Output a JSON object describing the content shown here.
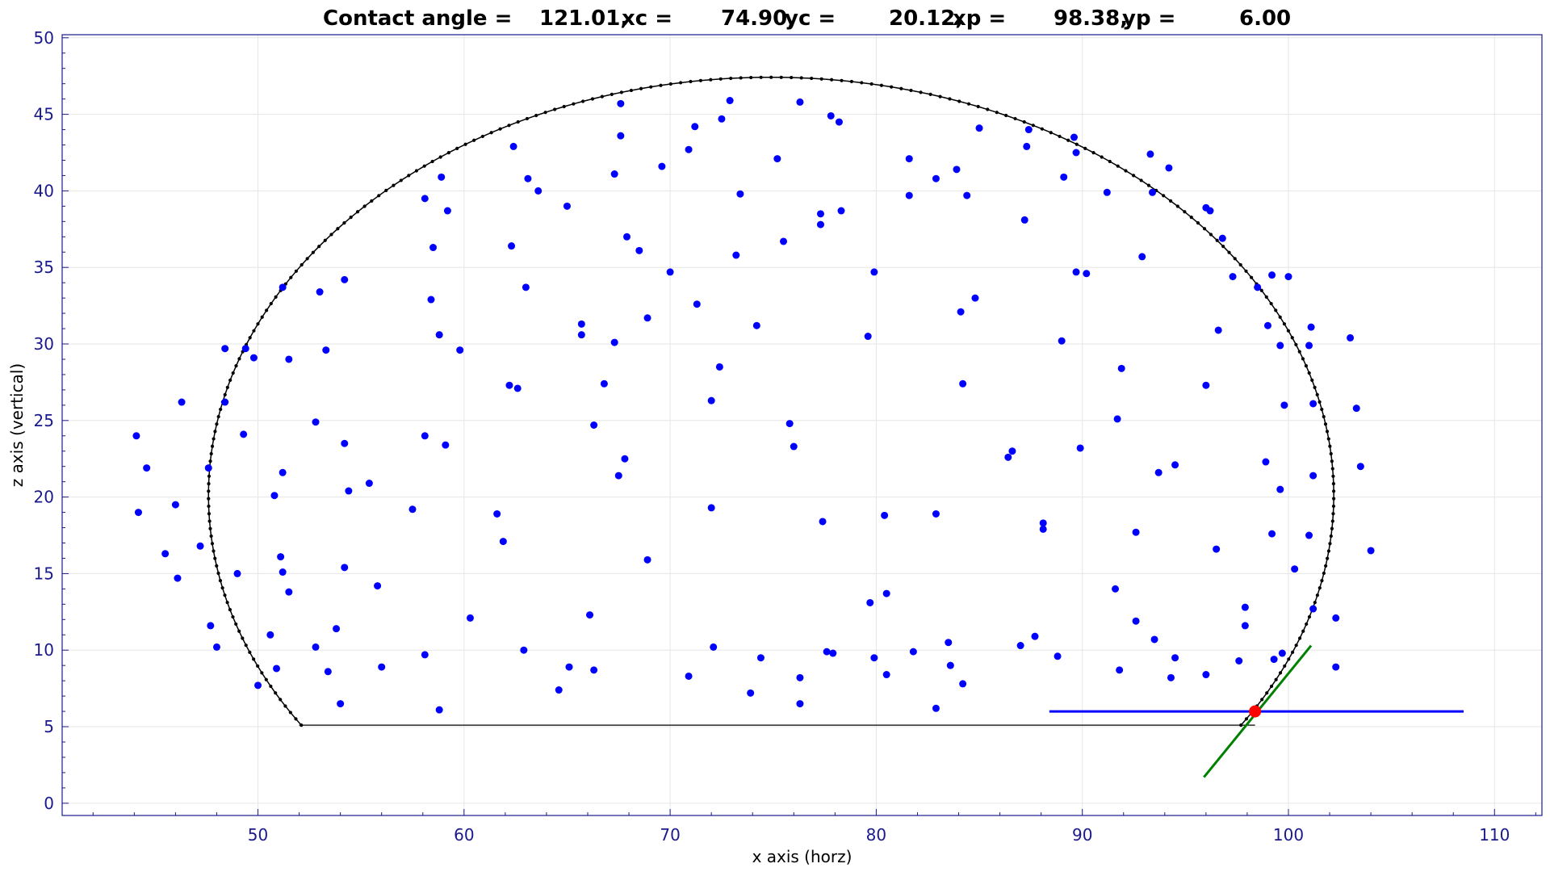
{
  "chart_data": {
    "type": "scatter",
    "title": {
      "prefix": "Contact angle =",
      "angle": "121.01,",
      "xc_label": "xc =",
      "xc": "74.90,",
      "yc_label": "yc =",
      "yc": "20.12,",
      "xp_label": "xp =",
      "xp": "98.38,",
      "yp_label": "yp =",
      "yp": "6.00"
    },
    "xlabel": "x axis (horz)",
    "ylabel": "z axis (vertical)",
    "xlim": [
      40.5,
      112.3
    ],
    "ylim": [
      -0.8,
      50.2
    ],
    "xticks": [
      50,
      60,
      70,
      80,
      90,
      100,
      110
    ],
    "yticks": [
      0,
      5,
      10,
      15,
      20,
      25,
      30,
      35,
      40,
      45,
      50
    ],
    "grid": true,
    "fitted_circle": {
      "xc": 74.9,
      "yc": 20.12,
      "r": 27.3,
      "base_z": 5.1
    },
    "baseline": {
      "x": [
        52.0,
        98.38
      ],
      "y": [
        5.1,
        5.1
      ]
    },
    "contact_point": {
      "x": 98.38,
      "y": 6.0,
      "color": "#ff0000"
    },
    "horizontal_line": {
      "x": [
        88.4,
        108.5
      ],
      "y": [
        6.0,
        6.0
      ],
      "color": "#0000ff"
    },
    "tangent_line": {
      "x": [
        95.9,
        101.1
      ],
      "y": [
        1.7,
        10.3
      ],
      "color": "#008000"
    },
    "points_color": "#0000ff",
    "circle_color": "#000000",
    "points": [
      [
        44.1,
        24.0
      ],
      [
        44.2,
        19.0
      ],
      [
        44.6,
        21.9
      ],
      [
        45.5,
        16.3
      ],
      [
        46.0,
        19.5
      ],
      [
        46.1,
        14.7
      ],
      [
        46.3,
        26.2
      ],
      [
        47.2,
        16.8
      ],
      [
        47.6,
        21.9
      ],
      [
        47.7,
        11.6
      ],
      [
        48.0,
        10.2
      ],
      [
        48.4,
        26.2
      ],
      [
        48.4,
        29.7
      ],
      [
        49.0,
        15.0
      ],
      [
        49.3,
        24.1
      ],
      [
        49.4,
        29.7
      ],
      [
        49.8,
        29.1
      ],
      [
        50.0,
        7.7
      ],
      [
        50.6,
        11.0
      ],
      [
        50.8,
        20.1
      ],
      [
        50.9,
        8.8
      ],
      [
        51.1,
        16.1
      ],
      [
        51.2,
        15.1
      ],
      [
        51.2,
        21.6
      ],
      [
        51.2,
        33.7
      ],
      [
        51.5,
        13.8
      ],
      [
        51.5,
        29.0
      ],
      [
        52.8,
        24.9
      ],
      [
        52.8,
        10.2
      ],
      [
        53.0,
        33.4
      ],
      [
        53.3,
        29.6
      ],
      [
        53.4,
        8.6
      ],
      [
        53.8,
        11.4
      ],
      [
        54.0,
        6.5
      ],
      [
        54.2,
        23.5
      ],
      [
        54.2,
        15.4
      ],
      [
        54.2,
        34.2
      ],
      [
        54.4,
        20.4
      ],
      [
        55.4,
        20.9
      ],
      [
        55.8,
        14.2
      ],
      [
        56.0,
        8.9
      ],
      [
        57.5,
        19.2
      ],
      [
        58.1,
        39.5
      ],
      [
        58.1,
        24.0
      ],
      [
        58.1,
        9.7
      ],
      [
        58.4,
        32.9
      ],
      [
        58.5,
        36.3
      ],
      [
        58.8,
        30.6
      ],
      [
        58.8,
        6.1
      ],
      [
        58.9,
        40.9
      ],
      [
        59.1,
        23.4
      ],
      [
        59.2,
        38.7
      ],
      [
        59.8,
        29.6
      ],
      [
        60.3,
        12.1
      ],
      [
        61.6,
        18.9
      ],
      [
        61.9,
        17.1
      ],
      [
        62.2,
        27.3
      ],
      [
        62.3,
        36.4
      ],
      [
        62.4,
        42.9
      ],
      [
        62.6,
        27.1
      ],
      [
        62.9,
        10.0
      ],
      [
        63.0,
        33.7
      ],
      [
        63.1,
        40.8
      ],
      [
        63.6,
        40.0
      ],
      [
        64.6,
        7.4
      ],
      [
        65.0,
        39.0
      ],
      [
        65.1,
        8.9
      ],
      [
        65.7,
        31.3
      ],
      [
        65.7,
        30.6
      ],
      [
        66.1,
        12.3
      ],
      [
        66.3,
        24.7
      ],
      [
        66.3,
        8.7
      ],
      [
        66.8,
        27.4
      ],
      [
        67.3,
        41.1
      ],
      [
        67.3,
        30.1
      ],
      [
        67.5,
        21.4
      ],
      [
        67.6,
        45.7
      ],
      [
        67.6,
        43.6
      ],
      [
        67.8,
        22.5
      ],
      [
        67.9,
        37.0
      ],
      [
        68.5,
        36.1
      ],
      [
        68.9,
        31.7
      ],
      [
        68.9,
        15.9
      ],
      [
        69.6,
        41.6
      ],
      [
        70.0,
        34.7
      ],
      [
        70.9,
        42.7
      ],
      [
        70.9,
        8.3
      ],
      [
        71.2,
        44.2
      ],
      [
        71.3,
        32.6
      ],
      [
        72.0,
        26.3
      ],
      [
        72.0,
        19.3
      ],
      [
        72.1,
        10.2
      ],
      [
        72.4,
        28.5
      ],
      [
        72.5,
        44.7
      ],
      [
        72.9,
        45.9
      ],
      [
        73.2,
        35.8
      ],
      [
        73.4,
        39.8
      ],
      [
        73.9,
        7.2
      ],
      [
        74.2,
        31.2
      ],
      [
        74.4,
        9.5
      ],
      [
        75.2,
        42.1
      ],
      [
        75.5,
        36.7
      ],
      [
        75.8,
        24.8
      ],
      [
        76.0,
        23.3
      ],
      [
        76.3,
        45.8
      ],
      [
        76.3,
        6.5
      ],
      [
        76.3,
        8.2
      ],
      [
        77.3,
        38.5
      ],
      [
        77.3,
        37.8
      ],
      [
        77.4,
        18.4
      ],
      [
        77.6,
        9.9
      ],
      [
        77.8,
        44.9
      ],
      [
        77.9,
        9.8
      ],
      [
        78.2,
        44.5
      ],
      [
        78.3,
        38.7
      ],
      [
        79.6,
        30.5
      ],
      [
        79.7,
        13.1
      ],
      [
        79.9,
        34.7
      ],
      [
        79.9,
        9.5
      ],
      [
        80.4,
        18.8
      ],
      [
        80.5,
        13.7
      ],
      [
        80.5,
        8.4
      ],
      [
        81.6,
        42.1
      ],
      [
        81.6,
        39.7
      ],
      [
        81.8,
        9.9
      ],
      [
        82.9,
        40.8
      ],
      [
        82.9,
        18.9
      ],
      [
        82.9,
        6.2
      ],
      [
        83.5,
        10.5
      ],
      [
        83.6,
        9.0
      ],
      [
        83.9,
        41.4
      ],
      [
        84.1,
        32.1
      ],
      [
        84.2,
        27.4
      ],
      [
        84.2,
        7.8
      ],
      [
        84.4,
        39.7
      ],
      [
        84.8,
        33.0
      ],
      [
        85.0,
        44.1
      ],
      [
        86.4,
        22.6
      ],
      [
        86.6,
        23.0
      ],
      [
        87.0,
        10.3
      ],
      [
        87.2,
        38.1
      ],
      [
        87.3,
        42.9
      ],
      [
        87.4,
        44.0
      ],
      [
        87.7,
        10.9
      ],
      [
        88.1,
        18.3
      ],
      [
        88.1,
        17.9
      ],
      [
        88.8,
        9.6
      ],
      [
        89.0,
        30.2
      ],
      [
        89.1,
        40.9
      ],
      [
        89.6,
        43.5
      ],
      [
        89.7,
        42.5
      ],
      [
        89.7,
        34.7
      ],
      [
        89.9,
        23.2
      ],
      [
        90.2,
        34.6
      ],
      [
        91.2,
        39.9
      ],
      [
        91.6,
        14.0
      ],
      [
        91.7,
        25.1
      ],
      [
        91.8,
        8.7
      ],
      [
        91.9,
        28.4
      ],
      [
        92.6,
        11.9
      ],
      [
        92.6,
        17.7
      ],
      [
        92.9,
        35.7
      ],
      [
        93.3,
        42.4
      ],
      [
        93.4,
        39.9
      ],
      [
        93.5,
        10.7
      ],
      [
        93.7,
        21.6
      ],
      [
        94.2,
        41.5
      ],
      [
        94.3,
        8.2
      ],
      [
        94.5,
        9.5
      ],
      [
        94.5,
        22.1
      ],
      [
        96.0,
        38.9
      ],
      [
        96.0,
        27.3
      ],
      [
        96.0,
        8.4
      ],
      [
        96.2,
        38.7
      ],
      [
        96.5,
        16.6
      ],
      [
        96.6,
        30.9
      ],
      [
        96.8,
        36.9
      ],
      [
        97.3,
        34.4
      ],
      [
        97.6,
        9.3
      ],
      [
        97.9,
        12.8
      ],
      [
        97.9,
        11.6
      ],
      [
        98.5,
        33.7
      ],
      [
        98.9,
        22.3
      ],
      [
        99.0,
        31.2
      ],
      [
        99.2,
        34.5
      ],
      [
        99.2,
        17.6
      ],
      [
        99.3,
        9.4
      ],
      [
        99.6,
        29.9
      ],
      [
        99.6,
        20.5
      ],
      [
        99.7,
        9.8
      ],
      [
        99.8,
        26.0
      ],
      [
        100.0,
        34.4
      ],
      [
        100.3,
        15.3
      ],
      [
        101.0,
        29.9
      ],
      [
        101.0,
        17.5
      ],
      [
        101.1,
        31.1
      ],
      [
        101.2,
        26.1
      ],
      [
        101.2,
        21.4
      ],
      [
        101.2,
        12.7
      ],
      [
        102.3,
        12.1
      ],
      [
        102.3,
        8.9
      ],
      [
        103.0,
        30.4
      ],
      [
        103.3,
        25.8
      ],
      [
        103.5,
        22.0
      ],
      [
        104.0,
        16.5
      ]
    ]
  }
}
